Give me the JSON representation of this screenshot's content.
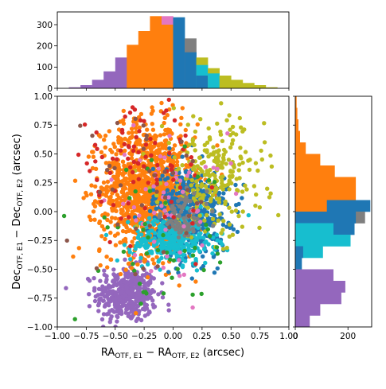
{
  "chart_data": {
    "type": "scatter",
    "xlabel": "RA_OTF,E1 − RA_OTF,E2 (arcsec)",
    "ylabel": "Dec_OTF,E1 − Dec_OTF,E2 (arcsec)",
    "xlabel_parts": {
      "main1": "RA",
      "sub1": "OTF, E1",
      "mid": " − RA",
      "sub2": "OTF, E2",
      "tail": " (arcsec)"
    },
    "ylabel_parts": {
      "main1": "Dec",
      "sub1": "OTF, E1",
      "mid": " − Dec",
      "sub2": "OTF, E2",
      "tail": " (arcsec)"
    },
    "xlim": [
      -1.0,
      1.0
    ],
    "ylim": [
      -1.0,
      1.0
    ],
    "ticks": {
      "main": [
        "−1.00",
        "−0.75",
        "−0.50",
        "−0.25",
        "0.00",
        "0.25",
        "0.50",
        "0.75",
        "1.00"
      ],
      "top_hist_y": [
        "0",
        "100",
        "200",
        "300"
      ],
      "right_hist_x": [
        "0",
        "200"
      ]
    },
    "top_hist_ylim": [
      0,
      360
    ],
    "right_hist_xlim": [
      0,
      290
    ],
    "colors": {
      "purple": "#9467bd",
      "orange": "#ff7f0e",
      "blue": "#1f77b4",
      "cyan": "#17becf",
      "olive": "#bcbd22",
      "gray": "#7f7f7f",
      "pink": "#e377c2",
      "red": "#d62728",
      "green": "#2ca02c",
      "brown": "#8c564b"
    },
    "clusters": [
      {
        "color": "purple",
        "cx": -0.4,
        "cy": -0.72,
        "sx": 0.13,
        "sy": 0.12,
        "n": 420
      },
      {
        "color": "orange",
        "cx": -0.22,
        "cy": 0.2,
        "sx": 0.2,
        "sy": 0.28,
        "n": 1200
      },
      {
        "color": "blue",
        "cx": 0.15,
        "cy": 0.0,
        "sx": 0.16,
        "sy": 0.2,
        "n": 500
      },
      {
        "color": "cyan",
        "cx": 0.0,
        "cy": -0.25,
        "sx": 0.18,
        "sy": 0.1,
        "n": 300
      },
      {
        "color": "olive",
        "cx": 0.35,
        "cy": 0.3,
        "sx": 0.22,
        "sy": 0.25,
        "n": 260
      },
      {
        "color": "gray",
        "cx": 0.1,
        "cy": -0.05,
        "sx": 0.1,
        "sy": 0.1,
        "n": 80
      },
      {
        "color": "pink",
        "cx": -0.05,
        "cy": 0.1,
        "sx": 0.25,
        "sy": 0.3,
        "n": 60
      },
      {
        "color": "red",
        "cx": -0.3,
        "cy": 0.4,
        "sx": 0.3,
        "sy": 0.25,
        "n": 90
      },
      {
        "color": "green",
        "cx": -0.15,
        "cy": -0.3,
        "sx": 0.35,
        "sy": 0.35,
        "n": 50
      },
      {
        "color": "brown",
        "cx": -0.2,
        "cy": 0.1,
        "sx": 0.35,
        "sy": 0.35,
        "n": 40
      }
    ],
    "top_histogram": {
      "bin_width": 0.1,
      "bins": [
        {
          "x0": -0.9,
          "color": "purple",
          "value": 5
        },
        {
          "x0": -0.8,
          "color": "purple",
          "value": 15
        },
        {
          "x0": -0.7,
          "color": "purple",
          "value": 40
        },
        {
          "x0": -0.6,
          "color": "purple",
          "value": 80
        },
        {
          "x0": -0.5,
          "color": "purple",
          "value": 145
        },
        {
          "x0": -0.4,
          "color": "orange",
          "value": 205
        },
        {
          "x0": -0.3,
          "color": "orange",
          "value": 270
        },
        {
          "x0": -0.2,
          "color": "orange",
          "value": 340
        },
        {
          "x0": -0.1,
          "color": "pink",
          "value": 340
        },
        {
          "x0": -0.1,
          "color": "orange",
          "value": 300
        },
        {
          "x0": 0.0,
          "color": "blue",
          "value": 335
        },
        {
          "x0": 0.1,
          "color": "gray",
          "value": 235
        },
        {
          "x0": 0.1,
          "color": "blue",
          "value": 170
        },
        {
          "x0": 0.2,
          "color": "olive",
          "value": 145
        },
        {
          "x0": 0.2,
          "color": "cyan",
          "value": 110
        },
        {
          "x0": 0.2,
          "color": "blue",
          "value": 60
        },
        {
          "x0": 0.3,
          "color": "olive",
          "value": 95
        },
        {
          "x0": 0.3,
          "color": "cyan",
          "value": 70
        },
        {
          "x0": 0.4,
          "color": "olive",
          "value": 60
        },
        {
          "x0": 0.5,
          "color": "olive",
          "value": 40
        },
        {
          "x0": 0.6,
          "color": "olive",
          "value": 25
        },
        {
          "x0": 0.7,
          "color": "olive",
          "value": 15
        },
        {
          "x0": 0.8,
          "color": "olive",
          "value": 5
        }
      ]
    },
    "right_histogram": {
      "bin_width": 0.1,
      "bins": [
        {
          "y0": 0.9,
          "color": "orange",
          "value": 5
        },
        {
          "y0": 0.8,
          "color": "orange",
          "value": 8
        },
        {
          "y0": 0.7,
          "color": "orange",
          "value": 12
        },
        {
          "y0": 0.6,
          "color": "orange",
          "value": 18
        },
        {
          "y0": 0.5,
          "color": "orange",
          "value": 40
        },
        {
          "y0": 0.4,
          "color": "orange",
          "value": 95
        },
        {
          "y0": 0.3,
          "color": "orange",
          "value": 150
        },
        {
          "y0": 0.2,
          "color": "orange",
          "value": 230
        },
        {
          "y0": 0.1,
          "color": "orange",
          "value": 230
        },
        {
          "y0": 0.0,
          "color": "blue",
          "value": 285
        },
        {
          "y0": 0.0,
          "color": "orange",
          "value": 120
        },
        {
          "y0": -0.1,
          "color": "gray",
          "value": 265
        },
        {
          "y0": -0.1,
          "color": "blue",
          "value": 230
        },
        {
          "y0": -0.2,
          "color": "blue",
          "value": 225
        },
        {
          "y0": -0.2,
          "color": "cyan",
          "value": 145
        },
        {
          "y0": -0.3,
          "color": "cyan",
          "value": 210
        },
        {
          "y0": -0.4,
          "color": "cyan",
          "value": 105
        },
        {
          "y0": -0.4,
          "color": "blue",
          "value": 30
        },
        {
          "y0": -0.5,
          "color": "blue",
          "value": 25
        },
        {
          "y0": -0.6,
          "color": "purple",
          "value": 145
        },
        {
          "y0": -0.7,
          "color": "purple",
          "value": 190
        },
        {
          "y0": -0.8,
          "color": "purple",
          "value": 175
        },
        {
          "y0": -0.9,
          "color": "purple",
          "value": 95
        },
        {
          "y0": -1.0,
          "color": "purple",
          "value": 55
        }
      ]
    }
  }
}
